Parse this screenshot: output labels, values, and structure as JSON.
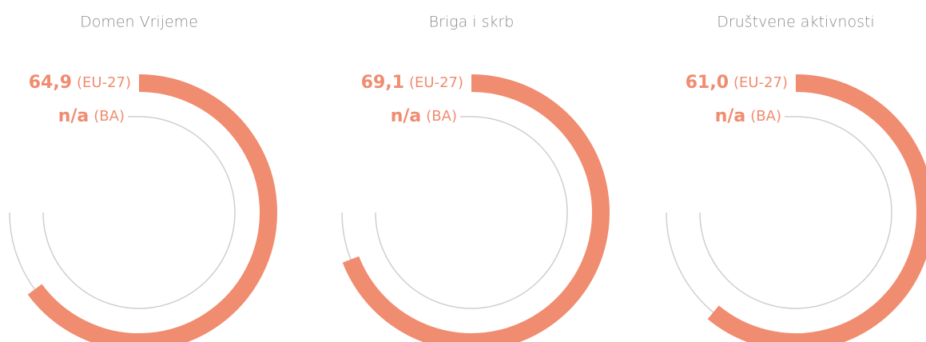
{
  "chart_data": [
    {
      "type": "radial",
      "title": "Domen Vrijeme",
      "ylim": [
        0,
        100
      ],
      "series": [
        {
          "name": "(EU-27)",
          "color": "#f08c70",
          "values": [
            64.9
          ],
          "value_labels": [
            "64,9"
          ]
        },
        {
          "name": "(BA)",
          "color": "#c8c8c8",
          "values": [
            null
          ],
          "value_labels": [
            "n/a"
          ]
        }
      ]
    },
    {
      "type": "radial",
      "title": "Briga i skrb",
      "ylim": [
        0,
        100
      ],
      "series": [
        {
          "name": "(EU-27)",
          "color": "#f08c70",
          "values": [
            69.1
          ],
          "value_labels": [
            "69,1"
          ]
        },
        {
          "name": "(BA)",
          "color": "#c8c8c8",
          "values": [
            null
          ],
          "value_labels": [
            "n/a"
          ]
        }
      ]
    },
    {
      "type": "radial",
      "title": "Društvene aktivnosti",
      "ylim": [
        0,
        100
      ],
      "series": [
        {
          "name": "(EU-27)",
          "color": "#f08c70",
          "values": [
            61.0
          ],
          "value_labels": [
            "61,0"
          ]
        },
        {
          "name": "(BA)",
          "color": "#c8c8c8",
          "values": [
            null
          ],
          "value_labels": [
            "n/a"
          ]
        }
      ]
    }
  ]
}
